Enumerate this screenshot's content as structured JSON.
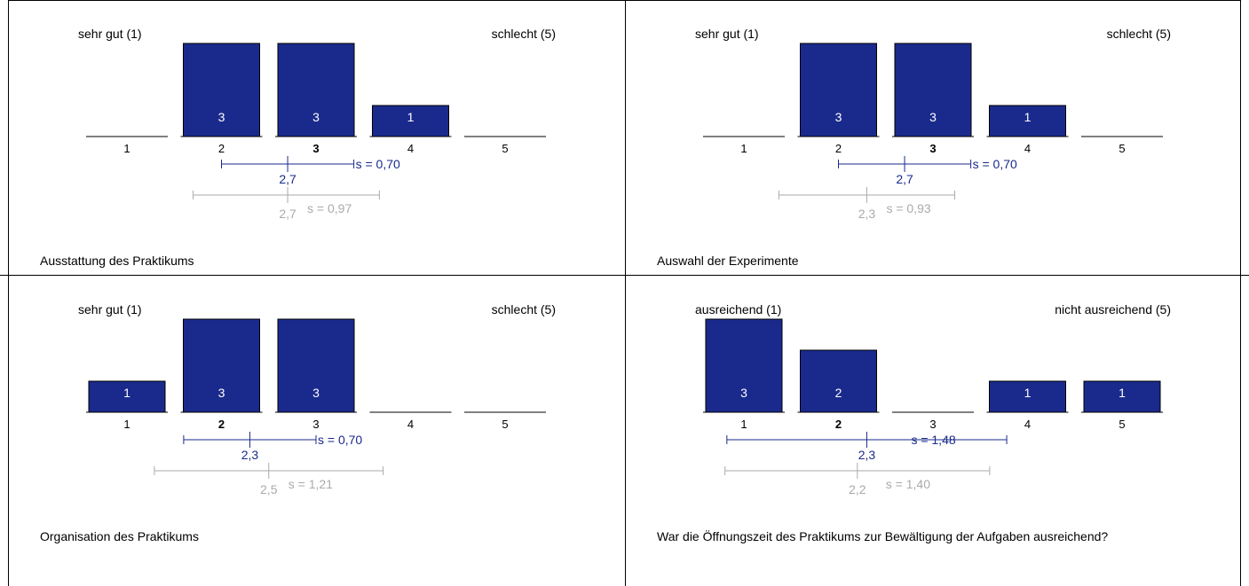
{
  "colors": {
    "bar": "#1a2a8c",
    "bar_border": "#000000",
    "mean_line": "#1a2a8c",
    "compare_line": "#aaaaaa",
    "bar_text": "#ffffff"
  },
  "chart_data": [
    {
      "type": "bar",
      "question": "Ausstattung des Praktikums",
      "label_left": "sehr gut (1)",
      "label_right": "schlecht (5)",
      "categories": [
        "1",
        "2",
        "3",
        "4",
        "5"
      ],
      "values": [
        0,
        3,
        3,
        1,
        0
      ],
      "bold_category": "3",
      "mean": {
        "value": 2.7,
        "label": "2,7",
        "s_label": "s = 0,70",
        "low": 2.0,
        "high": 3.4
      },
      "compare": {
        "value": 2.7,
        "label": "2,7",
        "s_label": "s = 0,97",
        "low": 1.7,
        "high": 3.67
      }
    },
    {
      "type": "bar",
      "question": "Auswahl der Experimente",
      "label_left": "sehr gut (1)",
      "label_right": "schlecht (5)",
      "categories": [
        "1",
        "2",
        "3",
        "4",
        "5"
      ],
      "values": [
        0,
        3,
        3,
        1,
        0
      ],
      "bold_category": "3",
      "mean": {
        "value": 2.7,
        "label": "2,7",
        "s_label": "s = 0,70",
        "low": 2.0,
        "high": 3.4
      },
      "compare": {
        "value": 2.3,
        "label": "2,3",
        "s_label": "s = 0,93",
        "low": 1.37,
        "high": 3.23
      }
    },
    {
      "type": "bar",
      "question": "Organisation des Praktikums",
      "label_left": "sehr gut (1)",
      "label_right": "schlecht (5)",
      "categories": [
        "1",
        "2",
        "3",
        "4",
        "5"
      ],
      "values": [
        1,
        3,
        3,
        0,
        0
      ],
      "bold_category": "2",
      "mean": {
        "value": 2.3,
        "label": "2,3",
        "s_label": "s = 0,70",
        "low": 1.6,
        "high": 3.0
      },
      "compare": {
        "value": 2.5,
        "label": "2,5",
        "s_label": "s = 1,21",
        "low": 1.29,
        "high": 3.71
      }
    },
    {
      "type": "bar",
      "question": "War die Öffnungszeit des Praktikums zur Bewältigung der Aufgaben ausreichend?",
      "label_left": "ausreichend (1)",
      "label_right": "nicht ausreichend (5)",
      "categories": [
        "1",
        "2",
        "3",
        "4",
        "5"
      ],
      "values": [
        3,
        2,
        0,
        1,
        1
      ],
      "bold_category": "2",
      "mean": {
        "value": 2.3,
        "label": "2,3",
        "s_label": "s = 1,48",
        "low": 0.82,
        "high": 3.78
      },
      "compare": {
        "value": 2.2,
        "label": "2,2",
        "s_label": "s = 1,40",
        "low": 0.8,
        "high": 3.6
      }
    }
  ]
}
